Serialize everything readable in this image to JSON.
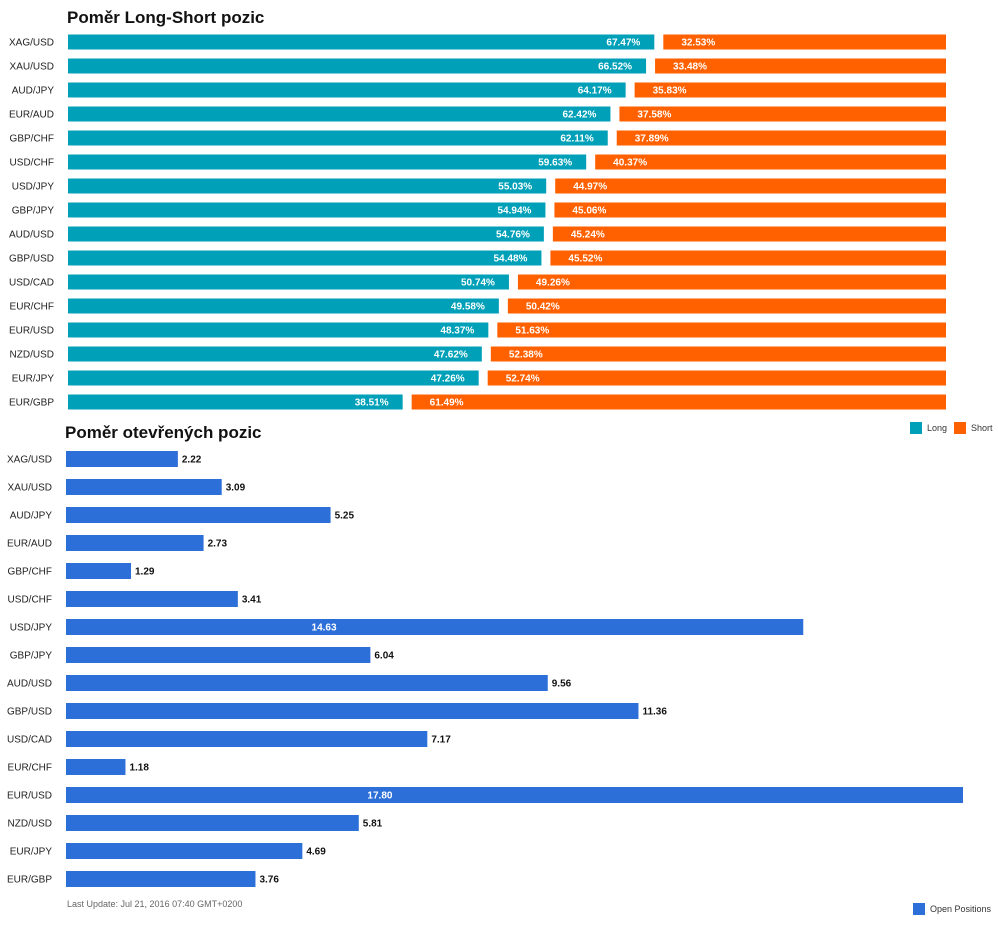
{
  "chart_data": [
    {
      "type": "bar",
      "stacked": true,
      "orientation": "horizontal",
      "title": "Poměr Long-Short pozic",
      "categories": [
        "XAG/USD",
        "XAU/USD",
        "AUD/JPY",
        "EUR/AUD",
        "GBP/CHF",
        "USD/CHF",
        "USD/JPY",
        "GBP/JPY",
        "AUD/USD",
        "GBP/USD",
        "USD/CAD",
        "EUR/CHF",
        "EUR/USD",
        "NZD/USD",
        "EUR/JPY",
        "EUR/GBP"
      ],
      "series": [
        {
          "name": "Long",
          "color": "#00a0b8",
          "values": [
            67.47,
            66.52,
            64.17,
            62.42,
            62.11,
            59.63,
            55.03,
            54.94,
            54.76,
            54.48,
            50.74,
            49.58,
            48.37,
            47.62,
            47.26,
            38.51
          ],
          "labels": [
            "67.47%",
            "66.52%",
            "64.17%",
            "62.42%",
            "62.11%",
            "59.63%",
            "55.03%",
            "54.94%",
            "54.76%",
            "54.48%",
            "50.74%",
            "49.58%",
            "48.37%",
            "47.62%",
            "47.26%",
            "38.51%"
          ]
        },
        {
          "name": "Short",
          "color": "#ff6000",
          "values": [
            32.53,
            33.48,
            35.83,
            37.58,
            37.89,
            40.37,
            44.97,
            45.06,
            45.24,
            45.52,
            49.26,
            50.42,
            51.63,
            52.38,
            52.74,
            61.49
          ],
          "labels": [
            "32.53%",
            "33.48%",
            "35.83%",
            "37.58%",
            "37.89%",
            "40.37%",
            "44.97%",
            "45.06%",
            "45.24%",
            "45.52%",
            "49.26%",
            "50.42%",
            "51.63%",
            "52.38%",
            "52.74%",
            "61.49%"
          ]
        }
      ],
      "xlim": [
        0,
        100
      ],
      "legend_position": "bottom-right",
      "grid": false
    },
    {
      "type": "bar",
      "orientation": "horizontal",
      "title": "Poměr otevřených pozic",
      "categories": [
        "XAG/USD",
        "XAU/USD",
        "AUD/JPY",
        "EUR/AUD",
        "GBP/CHF",
        "USD/CHF",
        "USD/JPY",
        "GBP/JPY",
        "AUD/USD",
        "GBP/USD",
        "USD/CAD",
        "EUR/CHF",
        "EUR/USD",
        "NZD/USD",
        "EUR/JPY",
        "EUR/GBP"
      ],
      "series": [
        {
          "name": "Open Positions",
          "color": "#2d6fd8",
          "values": [
            2.22,
            3.09,
            5.25,
            2.73,
            1.29,
            3.41,
            14.63,
            6.04,
            9.56,
            11.36,
            7.17,
            1.18,
            17.8,
            5.81,
            4.69,
            3.76
          ],
          "labels": [
            "2.22",
            "3.09",
            "5.25",
            "2.73",
            "1.29",
            "3.41",
            "14.63",
            "6.04",
            "9.56",
            "11.36",
            "7.17",
            "1.18",
            "17.80",
            "5.81",
            "4.69",
            "3.76"
          ]
        }
      ],
      "xlim": [
        0,
        17.8
      ],
      "legend_position": "bottom-right",
      "grid": false
    }
  ],
  "footer": {
    "last_update": "Last Update: Jul 21, 2016 07:40 GMT+0200"
  }
}
